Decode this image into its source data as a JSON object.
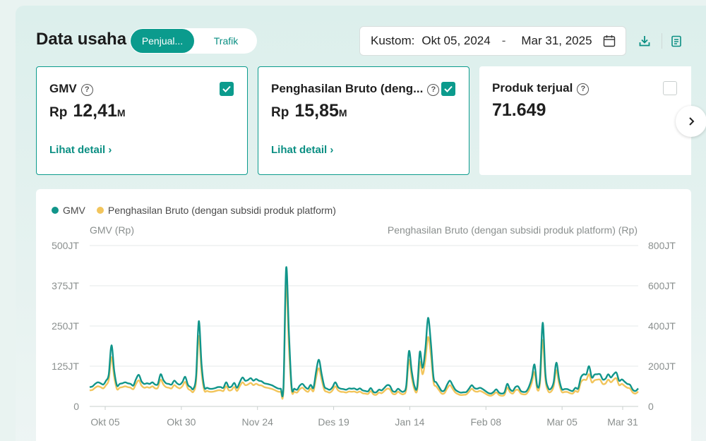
{
  "header": {
    "title": "Data usaha",
    "tabs": [
      {
        "label": "Penjual...",
        "active": true
      },
      {
        "label": "Trafik",
        "active": false
      }
    ],
    "date_range": {
      "label": "Kustom:",
      "start": "Okt 05, 2024",
      "separator": "-",
      "end": "Mar 31, 2025"
    },
    "icons": [
      "calendar-icon",
      "download-icon",
      "clipboard-icon"
    ]
  },
  "metrics": [
    {
      "title": "GMV",
      "currency": "Rp",
      "value": "12,41",
      "unit": "M",
      "link": "Lihat detail",
      "selected": true
    },
    {
      "title": "Penghasilan Bruto (deng...",
      "currency": "Rp",
      "value": "15,85",
      "unit": "M",
      "link": "Lihat detail",
      "selected": true
    },
    {
      "title": "Produk terjual",
      "currency": "",
      "value": "71.649",
      "unit": "",
      "link": "",
      "selected": false
    }
  ],
  "colors": {
    "accent": "#0b9b8d",
    "gmv": "#11958a",
    "bruto": "#f2c55c"
  },
  "chart_data": {
    "type": "line",
    "legend": [
      {
        "name": "GMV",
        "color": "#11958a"
      },
      {
        "name": "Penghasilan Bruto (dengan subsidi produk platform)",
        "color": "#f2c55c"
      }
    ],
    "legend_position": "top-left",
    "ylabel_left": "GMV (Rp)",
    "ylabel_right": "Penghasilan Bruto (dengan subsidi produk platform) (Rp)",
    "y_left_ticks": [
      "0",
      "125JT",
      "250JT",
      "375JT",
      "500JT"
    ],
    "y_left_range": [
      0,
      500
    ],
    "y_right_ticks": [
      "0",
      "200JT",
      "400JT",
      "600JT",
      "800JT"
    ],
    "y_right_range": [
      0,
      800
    ],
    "x_ticks": [
      "Okt 05",
      "Okt 30",
      "Nov 24",
      "Des 19",
      "Jan 14",
      "Feb 08",
      "Mar 05",
      "Mar 31"
    ],
    "grid": true,
    "series": [
      {
        "name": "GMV",
        "axis": "left",
        "unit": "JT",
        "values": [
          60,
          62,
          70,
          75,
          72,
          68,
          80,
          100,
          190,
          110,
          65,
          70,
          72,
          75,
          72,
          70,
          65,
          85,
          98,
          78,
          70,
          72,
          70,
          75,
          68,
          70,
          100,
          82,
          72,
          70,
          68,
          80,
          72,
          68,
          76,
          92,
          67,
          60,
          55,
          95,
          265,
          130,
          60,
          58,
          55,
          55,
          57,
          60,
          60,
          58,
          75,
          60,
          62,
          73,
          58,
          75,
          90,
          80,
          82,
          88,
          80,
          85,
          80,
          78,
          72,
          70,
          68,
          65,
          60,
          56,
          55,
          60,
          430,
          230,
          60,
          55,
          52,
          65,
          70,
          60,
          55,
          67,
          58,
          110,
          145,
          100,
          62,
          55,
          52,
          60,
          75,
          60,
          55,
          54,
          52,
          56,
          55,
          56,
          52,
          56,
          50,
          48,
          47,
          57,
          45,
          44,
          52,
          50,
          58,
          66,
          64,
          48,
          46,
          55,
          48,
          46,
          64,
          172,
          110,
          64,
          60,
          170,
          120,
          178,
          275,
          200,
          90,
          75,
          61,
          48,
          50,
          68,
          80,
          66,
          52,
          46,
          43,
          44,
          45,
          55,
          66,
          57,
          55,
          58,
          54,
          48,
          42,
          40,
          45,
          53,
          43,
          40,
          44,
          70,
          54,
          48,
          60,
          62,
          48,
          45,
          47,
          62,
          88,
          130,
          63,
          85,
          260,
          100,
          58,
          55,
          75,
          136,
          85,
          54,
          54,
          54,
          50,
          48,
          58,
          56,
          90,
          100,
          100,
          125,
          90,
          99,
          100,
          100,
          84,
          86,
          100,
          90,
          100,
          105,
          80,
          84,
          77,
          70,
          67,
          52,
          48,
          56
        ]
      },
      {
        "name": "Penghasilan Bruto (dengan subsidi produk platform)",
        "axis": "right",
        "unit": "JT",
        "values": [
          80,
          82,
          93,
          100,
          96,
          90,
          106,
          133,
          245,
          146,
          86,
          93,
          96,
          100,
          96,
          93,
          86,
          112,
          130,
          104,
          93,
          96,
          93,
          100,
          90,
          93,
          133,
          109,
          96,
          93,
          90,
          106,
          96,
          90,
          101,
          122,
          89,
          80,
          73,
          126,
          350,
          170,
          80,
          77,
          73,
          73,
          76,
          80,
          80,
          77,
          100,
          80,
          82,
          97,
          77,
          100,
          120,
          106,
          109,
          117,
          106,
          113,
          106,
          104,
          96,
          93,
          90,
          86,
          80,
          74,
          73,
          80,
          620,
          300,
          80,
          73,
          69,
          86,
          93,
          80,
          73,
          89,
          77,
          146,
          190,
          133,
          82,
          73,
          69,
          80,
          100,
          80,
          73,
          72,
          69,
          74,
          73,
          74,
          69,
          74,
          66,
          64,
          62,
          76,
          60,
          58,
          69,
          66,
          77,
          88,
          85,
          64,
          61,
          73,
          64,
          61,
          85,
          230,
          146,
          85,
          80,
          220,
          160,
          230,
          345,
          260,
          120,
          100,
          81,
          64,
          66,
          90,
          106,
          88,
          69,
          61,
          57,
          58,
          60,
          73,
          88,
          76,
          73,
          77,
          72,
          64,
          56,
          53,
          60,
          70,
          57,
          53,
          58,
          93,
          72,
          64,
          80,
          82,
          64,
          60,
          62,
          82,
          117,
          170,
          84,
          113,
          330,
          133,
          77,
          73,
          100,
          180,
          113,
          72,
          72,
          72,
          66,
          64,
          77,
          74,
          120,
          133,
          133,
          160,
          120,
          130,
          133,
          133,
          112,
          114,
          133,
          120,
          133,
          140,
          106,
          112,
          102,
          93,
          89,
          69,
          64,
          74
        ]
      }
    ]
  }
}
